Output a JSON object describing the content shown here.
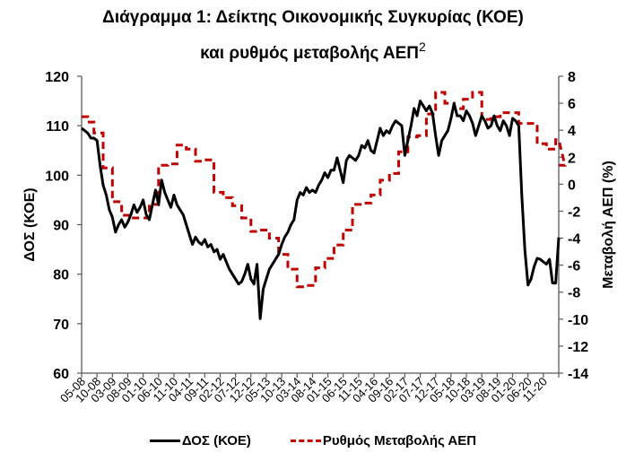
{
  "title_line1": "Διάγραμμα 1: Δείκτης Οικονομικής Συγκυρίας (ΚΟΕ)",
  "title_line2": "και ρυθμός μεταβολής ΑΕΠ",
  "title_sup": "2",
  "legend": {
    "series1": "ΔΟΣ (ΚΟΕ)",
    "series2": "Ρυθμός Μεταβολής ΑΕΠ"
  },
  "colors": {
    "series1": "#000000",
    "series2": "#c00000",
    "axis": "#595959"
  },
  "chart_data": {
    "type": "line",
    "title": "Διάγραμμα 1: Δείκτης Οικονομικής Συγκυρίας (ΚΟΕ) και ρυθμός μεταβολής ΑΕΠ",
    "xlabel": "",
    "ylabel": "ΔΟΣ (ΚΟΕ)",
    "y2label": "Μεταβολή ΑΕΠ (%)",
    "ylim": [
      60,
      120
    ],
    "y2lim": [
      -14,
      8
    ],
    "yticks": [
      60,
      70,
      80,
      90,
      100,
      110,
      120
    ],
    "y2ticks": [
      -14,
      -12,
      -10,
      -8,
      -6,
      -4,
      -2,
      0,
      2,
      4,
      6,
      8
    ],
    "x_start": "05-08",
    "x_months": 155,
    "x_tick_labels": [
      "05-08",
      "10-08",
      "03-09",
      "08-09",
      "01-10",
      "06-10",
      "11-10",
      "04-11",
      "09-11",
      "02-12",
      "07-12",
      "12-12",
      "05-13",
      "10-13",
      "03-14",
      "08-14",
      "01-15",
      "06-15",
      "11-15",
      "04-16",
      "09-16",
      "02-17",
      "07-17",
      "12-17",
      "05-18",
      "10-18",
      "03-19",
      "08-19",
      "01-20",
      "06-20",
      "11-20"
    ],
    "grid": false,
    "legend_position": "bottom",
    "series": [
      {
        "name": "ΔΟΣ (ΚΟΕ)",
        "axis": "left",
        "style": "solid",
        "points_month_index_value": [
          [
            0,
            109.5
          ],
          [
            2,
            108.5
          ],
          [
            3,
            107.5
          ],
          [
            4,
            107.5
          ],
          [
            5,
            107
          ],
          [
            6,
            102
          ],
          [
            7,
            98
          ],
          [
            8,
            96
          ],
          [
            9,
            93
          ],
          [
            10,
            91.5
          ],
          [
            11,
            88.5
          ],
          [
            12,
            90
          ],
          [
            13,
            91
          ],
          [
            14,
            89.5
          ],
          [
            15,
            90.5
          ],
          [
            16,
            92
          ],
          [
            17,
            94
          ],
          [
            18,
            92.5
          ],
          [
            19,
            93.5
          ],
          [
            20,
            95
          ],
          [
            21,
            92
          ],
          [
            22,
            91
          ],
          [
            23,
            94
          ],
          [
            24,
            97
          ],
          [
            25,
            94
          ],
          [
            26,
            99
          ],
          [
            27,
            96.5
          ],
          [
            28,
            95
          ],
          [
            29,
            93.5
          ],
          [
            30,
            96
          ],
          [
            31,
            94
          ],
          [
            32,
            93
          ],
          [
            33,
            92
          ],
          [
            34,
            90
          ],
          [
            35,
            88
          ],
          [
            36,
            86
          ],
          [
            37,
            87.5
          ],
          [
            38,
            86.5
          ],
          [
            39,
            86
          ],
          [
            40,
            87
          ],
          [
            41,
            85.5
          ],
          [
            42,
            86
          ],
          [
            43,
            84.5
          ],
          [
            44,
            85
          ],
          [
            45,
            83
          ],
          [
            46,
            84
          ],
          [
            47,
            82.5
          ],
          [
            48,
            81
          ],
          [
            49,
            80
          ],
          [
            50,
            79
          ],
          [
            51,
            78
          ],
          [
            52,
            78.5
          ],
          [
            53,
            80
          ],
          [
            54,
            82
          ],
          [
            55,
            79
          ],
          [
            56,
            78
          ],
          [
            57,
            82
          ],
          [
            58,
            71
          ],
          [
            59,
            77
          ],
          [
            60,
            79
          ],
          [
            61,
            81
          ],
          [
            62,
            82
          ],
          [
            63,
            83
          ],
          [
            64,
            84
          ],
          [
            65,
            86
          ],
          [
            66,
            87.5
          ],
          [
            67,
            88.5
          ],
          [
            68,
            90
          ],
          [
            69,
            91
          ],
          [
            70,
            95
          ],
          [
            71,
            96.5
          ],
          [
            72,
            96
          ],
          [
            73,
            97.5
          ],
          [
            74,
            96.5
          ],
          [
            75,
            97
          ],
          [
            76,
            96.5
          ],
          [
            77,
            98
          ],
          [
            78,
            99
          ],
          [
            79,
            100.5
          ],
          [
            80,
            99.5
          ],
          [
            81,
            101
          ],
          [
            82,
            101
          ],
          [
            83,
            103.5
          ],
          [
            84,
            101
          ],
          [
            85,
            98.5
          ],
          [
            86,
            103
          ],
          [
            87,
            104
          ],
          [
            88,
            103.5
          ],
          [
            89,
            103
          ],
          [
            90,
            104
          ],
          [
            91,
            106
          ],
          [
            92,
            105.5
          ],
          [
            93,
            107
          ],
          [
            94,
            105
          ],
          [
            95,
            104.5
          ],
          [
            96,
            107
          ],
          [
            97,
            109.5
          ],
          [
            98,
            108
          ],
          [
            99,
            109
          ],
          [
            100,
            108.5
          ],
          [
            101,
            110
          ],
          [
            102,
            111
          ],
          [
            103,
            110.5
          ],
          [
            104,
            110
          ],
          [
            105,
            104
          ],
          [
            106,
            107
          ],
          [
            107,
            110
          ],
          [
            108,
            113.5
          ],
          [
            109,
            112
          ],
          [
            110,
            115
          ],
          [
            111,
            114
          ],
          [
            112,
            113
          ],
          [
            113,
            114
          ],
          [
            114,
            112.5
          ],
          [
            115,
            108
          ],
          [
            116,
            104
          ],
          [
            117,
            107
          ],
          [
            118,
            108
          ],
          [
            119,
            109
          ],
          [
            120,
            111.5
          ],
          [
            121,
            114.5
          ],
          [
            122,
            112
          ],
          [
            123,
            112
          ],
          [
            124,
            111
          ],
          [
            125,
            113
          ],
          [
            126,
            112
          ],
          [
            127,
            110.5
          ],
          [
            128,
            108
          ],
          [
            129,
            110
          ],
          [
            130,
            112
          ],
          [
            131,
            111
          ],
          [
            132,
            109.5
          ],
          [
            133,
            110
          ],
          [
            134,
            112
          ],
          [
            135,
            110
          ],
          [
            136,
            109
          ],
          [
            137,
            111
          ],
          [
            138,
            110
          ],
          [
            139,
            108
          ],
          [
            140,
            111.5
          ],
          [
            141,
            111
          ],
          [
            142,
            110
          ],
          [
            143,
            96
          ],
          [
            144,
            85
          ],
          [
            145,
            77.8
          ],
          [
            146,
            79
          ],
          [
            147,
            81.5
          ],
          [
            148,
            83.2
          ],
          [
            149,
            83
          ],
          [
            150,
            82.5
          ],
          [
            151,
            82
          ],
          [
            152,
            83
          ],
          [
            153,
            78.2
          ],
          [
            154,
            78.2
          ],
          [
            155,
            87.4
          ]
        ]
      },
      {
        "name": "Ρυθμός Μεταβολής ΑΕΠ",
        "axis": "right",
        "style": "dashed",
        "quarterly_steps_month_start_end_value": [
          [
            0,
            2,
            5.0
          ],
          [
            2,
            4,
            4.6
          ],
          [
            4,
            7,
            3.8
          ],
          [
            7,
            10,
            1.2
          ],
          [
            10,
            13,
            -1.3
          ],
          [
            13,
            16,
            -2.3
          ],
          [
            16,
            19,
            -2.5
          ],
          [
            19,
            22,
            -2.5
          ],
          [
            22,
            25,
            -1.5
          ],
          [
            25,
            28,
            1.4
          ],
          [
            28,
            31,
            1.5
          ],
          [
            31,
            34,
            2.9
          ],
          [
            34,
            37,
            2.6
          ],
          [
            37,
            40,
            1.7
          ],
          [
            40,
            43,
            1.8
          ],
          [
            43,
            46,
            -0.6
          ],
          [
            46,
            49,
            -1.0
          ],
          [
            49,
            52,
            -1.6
          ],
          [
            52,
            55,
            -2.5
          ],
          [
            55,
            58,
            -3.5
          ],
          [
            58,
            61,
            -3.4
          ],
          [
            61,
            64,
            -4.0
          ],
          [
            64,
            67,
            -5.2
          ],
          [
            67,
            70,
            -6.3
          ],
          [
            70,
            73,
            -7.6
          ],
          [
            73,
            76,
            -7.5
          ],
          [
            76,
            79,
            -6.2
          ],
          [
            79,
            82,
            -5.5
          ],
          [
            82,
            85,
            -4.5
          ],
          [
            85,
            88,
            -3.4
          ],
          [
            88,
            91,
            -1.5
          ],
          [
            91,
            94,
            -1.4
          ],
          [
            94,
            97,
            -0.8
          ],
          [
            97,
            100,
            0.3
          ],
          [
            100,
            103,
            0.8
          ],
          [
            103,
            106,
            2.4
          ],
          [
            106,
            109,
            3.5
          ],
          [
            109,
            112,
            3.6
          ],
          [
            112,
            115,
            5.2
          ],
          [
            115,
            118,
            6.8
          ],
          [
            118,
            121,
            6.0
          ],
          [
            121,
            124,
            5.6
          ],
          [
            124,
            127,
            6.3
          ],
          [
            127,
            130,
            6.8
          ],
          [
            130,
            133,
            4.8
          ],
          [
            133,
            136,
            5.0
          ],
          [
            136,
            139,
            5.3
          ],
          [
            139,
            142,
            5.3
          ],
          [
            142,
            145,
            4.5
          ],
          [
            145,
            148,
            4.5
          ],
          [
            148,
            151,
            3.0
          ],
          [
            151,
            154,
            2.6
          ],
          [
            154,
            157,
            3.3
          ],
          [
            157,
            160,
            1.4
          ]
        ]
      }
    ]
  }
}
